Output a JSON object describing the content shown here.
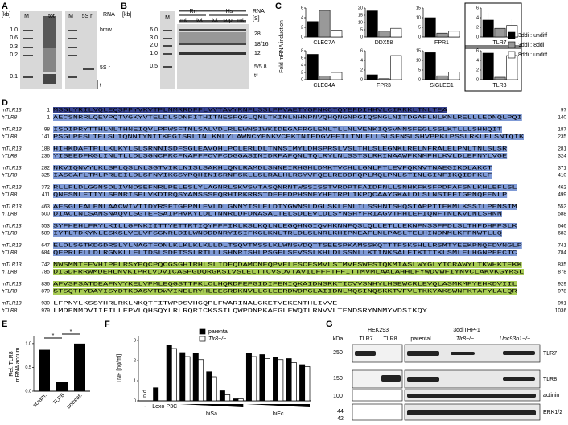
{
  "panel_labels": [
    "A",
    "B",
    "C",
    "D",
    "E",
    "F",
    "G"
  ],
  "panel_a": {
    "kb_label": "[kb]",
    "ladder": [
      "1.0",
      "0.6",
      "0.3",
      "0.2",
      "0.1"
    ],
    "lanes": [
      "M",
      "tot",
      "M",
      "5S r"
    ],
    "rna": "RNA",
    "bands": [
      "hmw",
      "5S r",
      "t"
    ]
  },
  "panel_b": {
    "kb_label": "[kb]",
    "ladder": [
      "6.0",
      "3.0",
      "2.0",
      "1.0",
      "0.5"
    ],
    "marker": "M",
    "species": [
      "Rn",
      "Hs"
    ],
    "lanes": [
      "mt",
      "tot",
      "tot",
      "sup",
      "mt"
    ],
    "rna": "RNA",
    "rna_unit": "[S]",
    "bands": [
      "28",
      "18/16",
      "12",
      "5/5.8",
      "t*"
    ]
  },
  "panel_c": {
    "y_label": "Fold mRNA induction",
    "legend": [
      "3ddi : undiff",
      "3ddi : 8ddi",
      "8ddi : undiff"
    ],
    "colors": [
      "#000000",
      "#999999",
      "#ffffff"
    ],
    "charts": [
      {
        "type": "bar",
        "title": "CLEC7A",
        "values": [
          3.2,
          5.5,
          1.4
        ],
        "ylim": [
          0,
          6
        ],
        "yticks": [
          0,
          2,
          4,
          6
        ]
      },
      {
        "type": "bar",
        "title": "DDX58",
        "values": [
          18,
          4,
          6
        ],
        "ylim": [
          0,
          20
        ],
        "yticks": [
          0,
          5,
          10,
          15,
          20
        ]
      },
      {
        "type": "bar",
        "title": "FPR1",
        "values": [
          10,
          2,
          3
        ],
        "ylim": [
          0,
          15
        ],
        "yticks": [
          0,
          5,
          10,
          15
        ]
      },
      {
        "type": "bar",
        "title": "TLR7",
        "values": [
          3.5,
          1.8,
          2.4
        ],
        "errors": [
          1.5,
          0.4,
          1.4
        ],
        "ylim": [
          0,
          6
        ],
        "yticks": [
          0,
          2,
          4,
          6
        ],
        "framed": true
      },
      {
        "type": "bar",
        "title": "CLEC4A",
        "values": [
          7,
          1,
          2
        ],
        "ylim": [
          0,
          8
        ],
        "yticks": [
          0,
          2,
          4,
          6,
          8
        ]
      },
      {
        "type": "bar",
        "title": "FPR3",
        "values": [
          1,
          0.2,
          5
        ],
        "ylim": [
          0,
          6
        ],
        "yticks": [
          0,
          2,
          4,
          6
        ]
      },
      {
        "type": "bar",
        "title": "SIGLEC1",
        "values": [
          14,
          2,
          4
        ],
        "ylim": [
          0,
          15
        ],
        "yticks": [
          0,
          5,
          10,
          15
        ]
      },
      {
        "type": "bar",
        "title": "TLR3",
        "values": [
          5.5,
          0.5,
          5
        ],
        "ylim": [
          0,
          6
        ],
        "yticks": [
          0,
          2,
          4,
          6
        ],
        "framed": true
      }
    ]
  },
  "panel_d": {
    "blocks": [
      [
        {
          "name": "mTLR13",
          "start": "1",
          "seq": "MSGLYRILVQLEQSPPYVKVTPLNMRRDFFLVVTAVYRNFLSSLPPVAETYGFNKCTQYEFDIHHVLCIRRKLTNLTEA",
          "end": "97"
        },
        {
          "name": "hTLR8",
          "start": "1",
          "seq": "AECSNRRLQEVPQTVGKYVTELDLSDNFITHITNESFQGLQNLTKINLNHNPNVQHQNGNPGIQSNGLNITDGAFLNLKNLRELLLEDNQLPQI",
          "end": "140"
        }
      ],
      [
        {
          "name": "mTLR13",
          "start": "98",
          "seq": "ISDIPRYTTHLNLTHNEIQVLPPWSFTNLSALVDLRLEWNSIWKIDEGAFRGLENLTLLNLVENKIQSVNNSFEGLSSLKTLLLSHNQIT",
          "end": "187"
        },
        {
          "name": "hTLR8",
          "start": "141",
          "seq": "PSGLPESLTELSLIQNNIYNITKEGISRLINLKNLYLAWNCYFNKVCEKTNIEDGVFETLTNLELLSLSFNSLSHVPPKLPSSLRKLFLSNTQIK",
          "end": "235"
        }
      ],
      [
        {
          "name": "mTLR13",
          "start": "188",
          "seq": "HIHKDAFTPLLKLKYLSLSRNNISDFSGLEAVQHLPCLERLDLTNNSIMYLDHSPRSLVSLTHLSLEGNKLRELNFRALELPNLTNLSLSR",
          "end": "281"
        },
        {
          "name": "hTLR8",
          "start": "236",
          "seq": "YISEEDFKGLINLTLLDLSGNCPRCFNAPFPCVPCDGGASINIDRFAFQNLTQLRYLNLSSTSLRKINAAWFKNMPHLKVLDLEFNYLVGE",
          "end": "324"
        }
      ],
      [
        {
          "name": "mTLR13",
          "start": "282",
          "seq": "NKVIQNVYLKLSPLQSLNLSGTVIKLNISLSAKHLQNLRAMDLSNNEIRHGHLDMKTVCHLLGNLPTLEVFQKNVTNAEGIKDLAKCT",
          "end": "371"
        },
        {
          "name": "hTLR8",
          "start": "325",
          "seq": "IASGAFLTMLPRLEILDLSFNYIKGSYPQHINISRNFSKLLSLRALHLRGYVFQELREDDFQPLMQLPNLSTINLGINFIKQIDFKLF",
          "end": "410"
        }
      ],
      [
        {
          "name": "mTLR13",
          "start": "372",
          "seq": "RLLFLDLGGNSDLIVNDSEFNRLPELESLYLAGNRLSKVSVTASQNRNTWSSISSTVRDPTFAIDFNLLSNHKFKSFPDFAFSNLKHLEFLSL",
          "end": "462"
        },
        {
          "name": "hTLR8",
          "start": "411",
          "seq": "QNFSNLEIIYLSENRISPLVKDTRQSYANSSSFQRHIRKRRSTDFEFDPHSNFYHFTRPLIKPQCAAYGKALDLSLNSIFFIGPNQFENLP",
          "end": "499"
        }
      ],
      [
        {
          "name": "mTLR13",
          "start": "463",
          "seq": "AFSGLFALENLAACWIVTIDYRSFTGFPNLEVLDLGNNYISLELDTYGWNSLDGLSKLENLILSSHNTSHQSIAPPTIEKMLKSSILPENSIM",
          "end": "552"
        },
        {
          "name": "hTLR8",
          "start": "500",
          "seq": "DIACLNLSANSNAQVLSGTEFSAIPHVKYLDLTNNRLDFDNASALTELSDLEVLDLSYNSHYFRIAGVTHHLEFIQNFTNLKVLNLSHNN",
          "end": "588"
        }
      ],
      [
        {
          "name": "mTLR13",
          "start": "553",
          "seq": "SYFHEHLFRYLKILLGFNKIITTYETTRTIQYPPFIKLKSLKQLNLEGQHNGIQVHKNNFQSLQLLETLLEKNPNSSFPDLSLTHFDHPPSLK",
          "end": "646"
        },
        {
          "name": "hTLR8",
          "start": "589",
          "seq": "IYTLTDKYNLESKSLVELVFSGNRLDILWNDDDNRYISIFKGLKNLTRLDLSLNRLKHIPNEAFLNLPASLTELHINDNMLKFFNWTLLQ",
          "end": "683"
        }
      ],
      [
        {
          "name": "mTLR13",
          "start": "647",
          "seq": "ELDLSGTKDGDRSLYLNAGTFONLKLKLKLKLLDLTSQVTMSSLKLWNSVDQTTSEESPKAMSSKQTTTFSKSHLLRSMTYEEKPNQFDVNGLP",
          "end": "741"
        },
        {
          "name": "hTLR8",
          "start": "684",
          "seq": "QFPRLELLDLRGNKLLFLTDSLSDFTSSLRTLLLSHNRISHLPSGFLSEVSSLKHLDLSSNLLKTINKSALETKTTTKLSMLELHGNPFECTC",
          "end": "784"
        }
      ],
      [
        {
          "name": "mTLR13",
          "start": "742",
          "seq": "NWSMNTEEVHIPFLRSYPQCPQCGSGHIRHLSLIDFQDAMCNFQPVELFSCFSMVLSTMVFSWFSTQKMIASLWYGLYICRAWYLTKWHKTEKK",
          "end": "835"
        },
        {
          "name": "hTLR8",
          "start": "785",
          "seq": "DIGDFRRWMDEHLNVKIPRLVDVICASPGDQRGKSIVSLELTTCVSDVTAVILFFFTFFITTMVMLAALAHHLFYWDVWFIYNVCLAKVKGYRSL",
          "end": "878"
        }
      ],
      [
        {
          "name": "mTLR13",
          "start": "836",
          "seq": "AFVSFSATDEAFNVYKELVPMLEQGSTTFKLCLHQRDFEPGIDIFENIQKAIDNSRKTICVVSNHYLHSEWCRLEVQLASMKMFYEHKDVIIL",
          "end": "929"
        },
        {
          "name": "hTLR8",
          "start": "879",
          "seq": "STSQTFYDAYISYDTKDASVTDWVINELRYHLEESRDKNVLLCLEERDWDPGLAIIDNLMQSINQSKKTVFVLTKKYAKSWNFKTAFYLALQR",
          "end": "978"
        }
      ],
      [
        {
          "name": "mTLR13",
          "start": "930",
          "seq": "LFPNYLKSSYHRLRKLNKQTFITWPDSVHGQPLFWARINALGKETVEKENTHLIVVE",
          "end": "991"
        },
        {
          "name": "hTLR8",
          "start": "979",
          "seq": "LMDENMDVIIFILLEPVLQHSQYLRLRQRICKSSILQWPDNPKAEGLFWQTLRNVVLTENDSRYNNMYVDSIKQY",
          "end": "1036"
        }
      ]
    ]
  },
  "panel_e": {
    "type": "bar",
    "y_label": [
      "Rel. TLR8",
      "mRNA accum."
    ],
    "categories": [
      "scram.",
      "TLR8",
      "untreat."
    ],
    "values": [
      0.87,
      0.2,
      1.0
    ],
    "color": "#000000",
    "ylim": [
      0,
      1.15
    ],
    "yticks": [
      {
        "value": 0,
        "label": "0.0"
      },
      0.5,
      {
        "value": 1,
        "label": "1.0"
      }
    ],
    "significance": [
      "*",
      "*"
    ]
  },
  "panel_f": {
    "type": "bar",
    "y_label": "TNF [ng/ml]",
    "categories": [
      "-",
      "Loxo",
      "P3C",
      null,
      null,
      null,
      null,
      null,
      null,
      null,
      null,
      null,
      null
    ],
    "groups": [
      "hiSa",
      "hiEc"
    ],
    "annotation": "n.d.",
    "ylim": [
      0,
      3.2
    ],
    "yticks": [
      0,
      1,
      2,
      3
    ],
    "series": [
      {
        "name": "parental",
        "color": "#000000",
        "values": [
          null,
          0.65,
          2.75,
          2.4,
          2.35,
          1.45,
          0.5,
          0.1,
          2.35,
          2.3,
          2.15,
          2.1,
          1.8
        ]
      },
      {
        "name": "Tlr8−/−",
        "color": "#ffffff",
        "values": [
          null,
          null,
          2.6,
          2.2,
          2.05,
          1.2,
          0.3,
          0.1,
          2.2,
          2.1,
          2.05,
          1.9,
          1.7
        ]
      }
    ]
  },
  "panel_g": {
    "cells": [
      "HEK293",
      "3ddiTHP-1"
    ],
    "kda_label": "kDa",
    "markers": [
      "250",
      "150",
      "100",
      "44",
      "42"
    ],
    "lanes": [
      "TLR7",
      "TLR8",
      "parental",
      "Tlr8−/−",
      "Unc93b1−/−"
    ],
    "proteins": [
      "TLR7",
      "TLR8",
      "actinin",
      "ERK1/2"
    ]
  }
}
